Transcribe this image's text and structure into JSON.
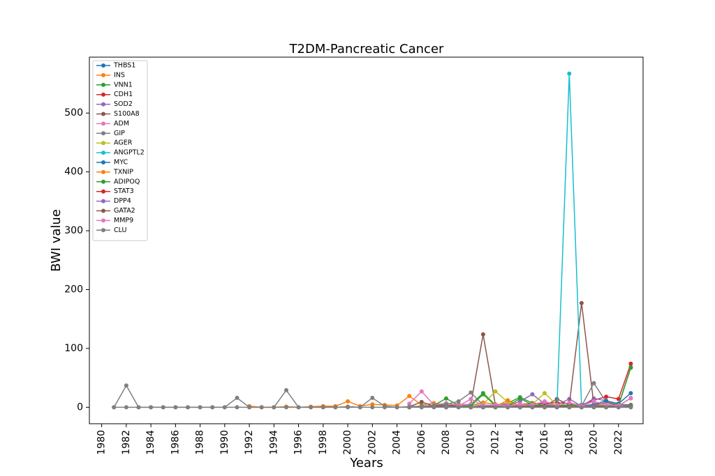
{
  "chart_data": {
    "type": "line",
    "title": "T2DM-Pancreatic Cancer",
    "xlabel": "Years",
    "ylabel": "BWI value",
    "xlim": [
      1979,
      2024
    ],
    "ylim": [
      -28,
      595
    ],
    "xticks": [
      1980,
      1982,
      1984,
      1986,
      1988,
      1990,
      1992,
      1994,
      1996,
      1998,
      2000,
      2002,
      2004,
      2006,
      2008,
      2010,
      2012,
      2014,
      2016,
      2018,
      2020,
      2022
    ],
    "yticks": [
      0,
      100,
      200,
      300,
      400,
      500
    ],
    "legend": "top-left",
    "grid": false,
    "series": [
      {
        "name": "THBS1",
        "color": "#1f77b4",
        "x": [
          2009,
          2010,
          2011,
          2012,
          2013,
          2014,
          2015,
          2016,
          2017,
          2018,
          2019,
          2020,
          2021,
          2022,
          2023
        ],
        "y": [
          0,
          0,
          1,
          0,
          2,
          1,
          2,
          1,
          0,
          2,
          0,
          5,
          4,
          2,
          4
        ]
      },
      {
        "name": "INS",
        "color": "#ff7f0e",
        "x": [
          1992,
          1993,
          1994,
          1995,
          1996,
          1997,
          1998,
          1999,
          2000,
          2001,
          2002,
          2003,
          2004,
          2005,
          2006,
          2007,
          2008,
          2009,
          2010,
          2011,
          2012,
          2013,
          2014,
          2015,
          2016,
          2017,
          2018,
          2019,
          2020,
          2021,
          2022,
          2023
        ],
        "y": [
          2,
          0,
          0,
          1,
          0,
          1,
          2,
          2,
          10,
          2,
          5,
          4,
          3,
          19,
          4,
          7,
          3,
          5,
          3,
          8,
          5,
          2,
          3,
          4,
          2,
          3,
          4,
          2,
          3,
          2,
          2,
          2
        ]
      },
      {
        "name": "VNN1",
        "color": "#2ca02c",
        "x": [
          2005,
          2006,
          2007,
          2008,
          2009,
          2010,
          2011,
          2012,
          2013,
          2014,
          2015,
          2016,
          2017,
          2018,
          2019,
          2020,
          2021,
          2022,
          2023
        ],
        "y": [
          0,
          2,
          3,
          15,
          3,
          5,
          24,
          4,
          7,
          17,
          7,
          4,
          3,
          2,
          2,
          5,
          3,
          5,
          4
        ]
      },
      {
        "name": "CDH1",
        "color": "#d62728",
        "x": [
          2005,
          2006,
          2007,
          2008,
          2009,
          2010,
          2011,
          2012,
          2013,
          2014,
          2015,
          2016,
          2017,
          2018,
          2019,
          2020,
          2021,
          2022,
          2023
        ],
        "y": [
          0,
          1,
          2,
          1,
          3,
          4,
          2,
          3,
          4,
          5,
          6,
          7,
          8,
          6,
          4,
          12,
          18,
          14,
          74
        ]
      },
      {
        "name": "SOD2",
        "color": "#9467bd",
        "x": [
          2006,
          2007,
          2008,
          2009,
          2010,
          2011,
          2012,
          2013,
          2014,
          2015,
          2016,
          2017,
          2018,
          2019,
          2020,
          2021,
          2022,
          2023
        ],
        "y": [
          0,
          1,
          2,
          1,
          3,
          2,
          4,
          3,
          10,
          22,
          6,
          4,
          14,
          2,
          15,
          11,
          6,
          2
        ]
      },
      {
        "name": "S100A8",
        "color": "#8c564b",
        "x": [
          2005,
          2006,
          2007,
          2008,
          2009,
          2010,
          2011,
          2012,
          2013,
          2014,
          2015,
          2016,
          2017,
          2018,
          2019,
          2020,
          2021,
          2022,
          2023
        ],
        "y": [
          1,
          9,
          2,
          3,
          4,
          5,
          124,
          4,
          5,
          3,
          4,
          2,
          14,
          4,
          177,
          4,
          8,
          3,
          68
        ]
      },
      {
        "name": "ADM",
        "color": "#e377c2",
        "x": [
          2005,
          2006,
          2007,
          2008,
          2009,
          2010,
          2011,
          2012,
          2013,
          2014,
          2015,
          2016,
          2017,
          2018,
          2019,
          2020,
          2021,
          2022,
          2023
        ],
        "y": [
          6,
          27,
          4,
          7,
          3,
          5,
          3,
          4,
          6,
          4,
          2,
          5,
          3,
          3,
          2,
          3,
          4,
          2,
          16
        ]
      },
      {
        "name": "GIP",
        "color": "#7f7f7f",
        "x": [
          1981,
          1982,
          1983,
          1984,
          1985,
          1986,
          1987,
          1988,
          1989,
          1990,
          1991,
          1992,
          1993,
          1994,
          1995,
          1996,
          1997,
          1998,
          1999,
          2000,
          2001,
          2002,
          2003,
          2004,
          2005,
          2006,
          2007,
          2008,
          2009,
          2010,
          2011,
          2012,
          2013,
          2014,
          2015,
          2016,
          2017,
          2018,
          2019,
          2020,
          2021,
          2022,
          2023
        ],
        "y": [
          0,
          37,
          0,
          0,
          0,
          0,
          0,
          0,
          0,
          0,
          16,
          0,
          0,
          0,
          29,
          0,
          0,
          0,
          0,
          1,
          0,
          16,
          2,
          0,
          1,
          2,
          3,
          5,
          10,
          25,
          4,
          3,
          2,
          4,
          3,
          2,
          3,
          4,
          2,
          41,
          9,
          4,
          2
        ]
      },
      {
        "name": "AGER",
        "color": "#bcbd22",
        "x": [
          2008,
          2009,
          2010,
          2011,
          2012,
          2013,
          2014,
          2015,
          2016,
          2017,
          2018,
          2019,
          2020,
          2021,
          2022,
          2023
        ],
        "y": [
          0,
          1,
          2,
          5,
          27,
          9,
          3,
          5,
          24,
          4,
          3,
          2,
          3,
          5,
          2,
          2
        ]
      },
      {
        "name": "ANGPTL2",
        "color": "#17becf",
        "x": [
          2012,
          2013,
          2014,
          2015,
          2016,
          2017,
          2018,
          2019,
          2020,
          2021,
          2022,
          2023
        ],
        "y": [
          0,
          0,
          0,
          0,
          0,
          0,
          567,
          0,
          0,
          0,
          0,
          0
        ]
      },
      {
        "name": "MYC",
        "color": "#1f77b4",
        "x": [
          2008,
          2009,
          2010,
          2011,
          2012,
          2013,
          2014,
          2015,
          2016,
          2017,
          2018,
          2019,
          2020,
          2021,
          2022,
          2023
        ],
        "y": [
          0,
          1,
          0,
          2,
          1,
          0,
          1,
          2,
          1,
          0,
          2,
          1,
          5,
          11,
          6,
          24
        ]
      },
      {
        "name": "TXNIP",
        "color": "#ff7f0e",
        "x": [
          2010,
          2011,
          2012,
          2013,
          2014,
          2015,
          2016,
          2017,
          2018,
          2019,
          2020,
          2021,
          2022,
          2023
        ],
        "y": [
          0,
          0,
          1,
          12,
          2,
          1,
          0,
          1,
          2,
          0,
          1,
          0,
          2,
          1
        ]
      },
      {
        "name": "ADIPOQ",
        "color": "#2ca02c",
        "x": [
          2008,
          2009,
          2010,
          2011,
          2012,
          2013,
          2014,
          2015,
          2016,
          2017,
          2018,
          2019,
          2020,
          2021,
          2022,
          2023
        ],
        "y": [
          0,
          1,
          2,
          22,
          3,
          2,
          15,
          4,
          3,
          2,
          4,
          2,
          3,
          2,
          3,
          67
        ]
      },
      {
        "name": "STAT3",
        "color": "#d62728",
        "x": [
          2010,
          2011,
          2012,
          2013,
          2014,
          2015,
          2016,
          2017,
          2018,
          2019,
          2020,
          2021,
          2022,
          2023
        ],
        "y": [
          0,
          0,
          0,
          1,
          0,
          1,
          2,
          1,
          0,
          0,
          1,
          0,
          1,
          2
        ]
      },
      {
        "name": "DPP4",
        "color": "#9467bd",
        "x": [
          2010,
          2011,
          2012,
          2013,
          2014,
          2015,
          2016,
          2017,
          2018,
          2019,
          2020,
          2021,
          2022,
          2023
        ],
        "y": [
          0,
          1,
          0,
          2,
          1,
          0,
          1,
          2,
          0,
          1,
          3,
          2,
          1,
          2
        ]
      },
      {
        "name": "GATA2",
        "color": "#8c564b",
        "x": [
          2010,
          2011,
          2012,
          2013,
          2014,
          2015,
          2016,
          2017,
          2018,
          2019,
          2020,
          2021,
          2022,
          2023
        ],
        "y": [
          0,
          0,
          1,
          0,
          2,
          1,
          0,
          2,
          1,
          0,
          1,
          2,
          0,
          1
        ]
      },
      {
        "name": "MMP9",
        "color": "#e377c2",
        "x": [
          2009,
          2010,
          2011,
          2012,
          2013,
          2014,
          2015,
          2016,
          2017,
          2018,
          2019,
          2020,
          2021,
          2022,
          2023
        ],
        "y": [
          2,
          14,
          3,
          4,
          2,
          5,
          4,
          10,
          3,
          8,
          2,
          10,
          4,
          3,
          15
        ]
      },
      {
        "name": "CLU",
        "color": "#7f7f7f",
        "x": [
          1981,
          1982,
          1983,
          1984,
          1985,
          1986,
          1987,
          1988,
          1989,
          1990,
          1991,
          1992,
          1993,
          1994,
          1995,
          1996,
          1997,
          1998,
          1999,
          2000,
          2001,
          2002,
          2003,
          2004,
          2005,
          2006,
          2007,
          2008,
          2009,
          2010,
          2011,
          2012,
          2013,
          2014,
          2015,
          2016,
          2017,
          2018,
          2019,
          2020,
          2021,
          2022,
          2023
        ],
        "y": [
          0,
          0,
          0,
          0,
          0,
          0,
          0,
          0,
          0,
          0,
          0,
          0,
          0,
          0,
          0,
          0,
          0,
          0,
          0,
          0,
          0,
          0,
          0,
          0,
          0,
          0,
          0,
          0,
          0,
          0,
          0,
          0,
          0,
          0,
          0,
          0,
          0,
          0,
          0,
          0,
          0,
          0,
          0
        ]
      }
    ]
  }
}
